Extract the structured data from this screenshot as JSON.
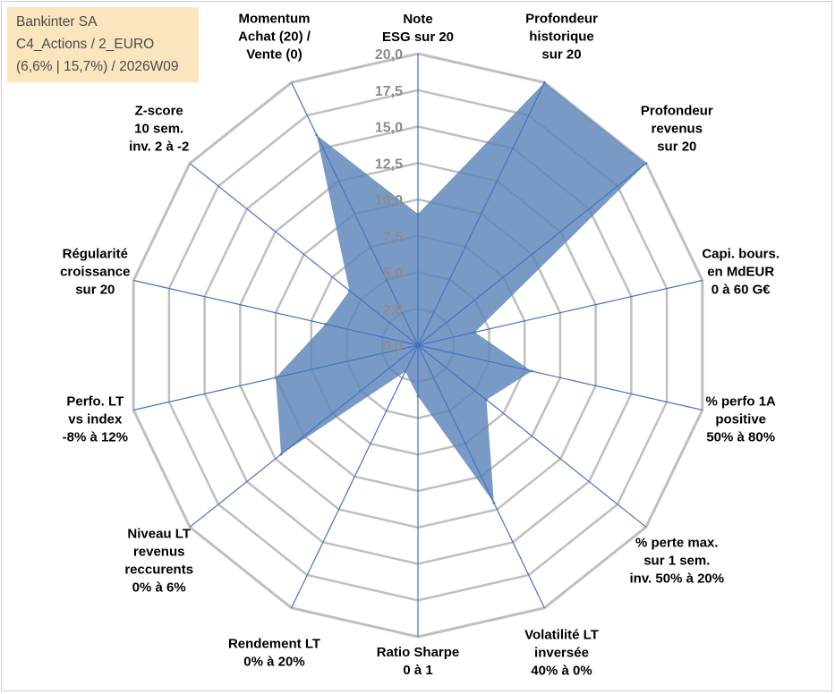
{
  "info_box": {
    "line1": "Bankinter SA",
    "line2": "C4_Actions / 2_EURO",
    "line3": "(6,6% | 15,7%) / 2026W09"
  },
  "chart_data": {
    "type": "radar",
    "title": "",
    "grid": true,
    "r_range": [
      0,
      20
    ],
    "r_ticks": [
      "0,0",
      "2,5",
      "5,0",
      "7,5",
      "10,0",
      "12,5",
      "15,0",
      "17,5",
      "20,0"
    ],
    "categories": [
      [
        "Note",
        "ESG sur 20"
      ],
      [
        "Profondeur",
        "historique",
        "sur 20"
      ],
      [
        "Profondeur",
        "revenus",
        "sur 20"
      ],
      [
        "Capi. bours.",
        "en MdEUR",
        "0 à 60 G€"
      ],
      [
        "% perfo 1A",
        "positive",
        "50% à 80%"
      ],
      [
        "% perte max.",
        "sur 1 sem.",
        "inv. 50% à 20%"
      ],
      [
        "Volatilité LT",
        "inversée",
        "40% à 0%"
      ],
      [
        "Ratio Sharpe",
        "0 à 1"
      ],
      [
        "Rendement LT",
        "0% à 20%"
      ],
      [
        "Niveau LT",
        "revenus",
        "reccurents",
        "0% à 6%"
      ],
      [
        "Perfo. LT",
        "vs index",
        "-8% à 12%"
      ],
      [
        "Régularité",
        "croissance",
        "sur 20"
      ],
      [
        "Z-score",
        "10 sem.",
        "inv. 2 à -2"
      ],
      [
        "Momentum",
        "Achat (20) /",
        "Vente (0)"
      ]
    ],
    "series": [
      {
        "values": [
          9.0,
          20.0,
          20.0,
          4.0,
          8.0,
          6.0,
          12.0,
          3.5,
          2.0,
          12.0,
          10.0,
          6.5,
          6.0,
          16.0
        ],
        "color": "#5b84b8",
        "opacity": 0.82
      }
    ],
    "colors": {
      "grid": "#bfbfbf",
      "spokes": "#4472c4",
      "labels": "#000000",
      "info_box_bg": "#fbe5bd"
    }
  }
}
